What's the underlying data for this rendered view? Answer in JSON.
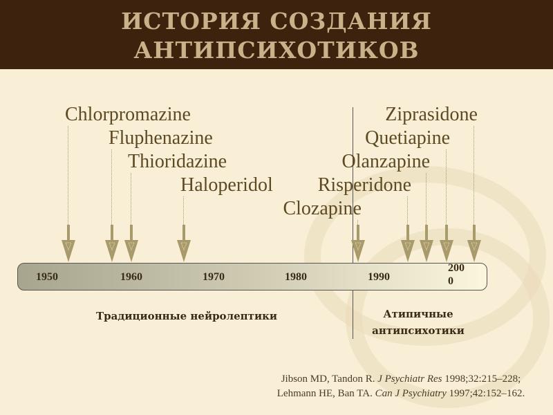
{
  "title": "ИСТОРИЯ СОЗДАНИЯ АНТИПСИХОТИКОВ",
  "years": [
    "1950",
    "1960",
    "1970",
    "1980",
    "1990",
    "2000"
  ],
  "drugs": [
    "Chlorpromazine",
    "Fluphenazine",
    "Thioridazine",
    "Haloperidol",
    "Clozapine",
    "Risperidone",
    "Olanzapine",
    "Quetiapine",
    "Ziprasidone"
  ],
  "groups": {
    "traditional": "Традиционные нейролептики",
    "atypical": "Атипичные антипсихотики"
  },
  "refs": {
    "r1_authors": "Jibson MD, Tandon R. ",
    "r1_journal": "J Psychiatr Res",
    "r1_rest": " 1998;32:215–228;",
    "r2_authors": "Lehmann HE, Ban TA. ",
    "r2_journal": "Can J Psychiatry",
    "r2_rest": " 1997;42:152–162."
  },
  "colors": {
    "header": "#3d230e",
    "background": "#f8efd6",
    "arrow": "#a89a6a"
  }
}
